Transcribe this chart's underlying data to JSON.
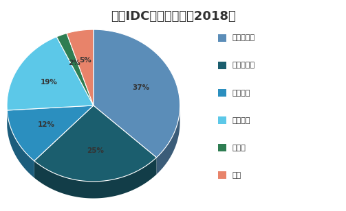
{
  "title": "中国IDC市场需求方（2018）",
  "labels": [
    "云计算厂商",
    "互联网企业",
    "金融机构",
    "政府机关",
    "制造业",
    "其他"
  ],
  "values": [
    37,
    25,
    12,
    19,
    2,
    5
  ],
  "colors": [
    "#5B8DB8",
    "#1B5E6E",
    "#2B8FBF",
    "#5CC8E8",
    "#2E7D52",
    "#E8836A"
  ],
  "pct_labels": [
    "37%",
    "25%",
    "12%",
    "19%",
    "2%",
    "5%"
  ],
  "title_fontsize": 13,
  "background_color": "#FFFFFF",
  "3d_depth": 0.08,
  "shadow_color": "#B0B8C0"
}
